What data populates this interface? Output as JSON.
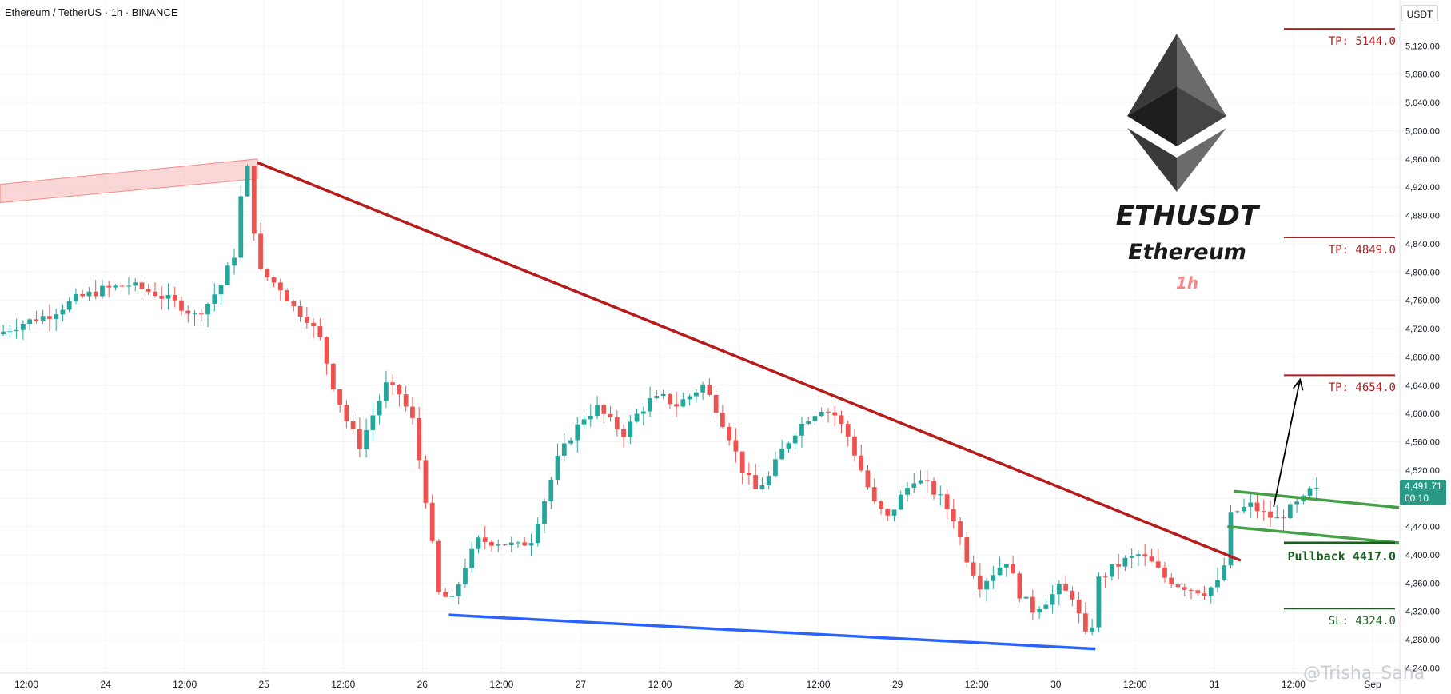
{
  "header": {
    "title": "Ethereum / TetherUS · 1h · BINANCE"
  },
  "currency": "USDT",
  "price_tag": {
    "price": "4,491.71",
    "countdown": "00:10"
  },
  "logo": {
    "symbol": "ETHUSDT",
    "name": "Ethereum",
    "timeframe": "1h",
    "icon": "ethereum-diamond-icon"
  },
  "levels": [
    {
      "label": "TP: 5144.0",
      "price": 5144.0,
      "color": "#b71c1c"
    },
    {
      "label": "TP: 4849.0",
      "price": 4849.0,
      "color": "#b71c1c"
    },
    {
      "label": "TP: 4654.0",
      "price": 4654.0,
      "color": "#b71c1c"
    },
    {
      "label": "Pullback 4417.0",
      "price": 4417.0,
      "color": "#1b5e20"
    },
    {
      "label": "SL: 4324.0",
      "price": 4324.0,
      "color": "#1b5e20"
    }
  ],
  "watermark": "@Trisha_Saha",
  "colors": {
    "up": "#26a69a",
    "down": "#ef5350",
    "resistance_line": "#b71c1c",
    "support_line": "#2962ff",
    "channel": "#43a047",
    "zone": "#f8b4b4"
  },
  "chart_data": {
    "type": "candlestick",
    "y_tick_labels": [
      "4,240.00",
      "4,280.00",
      "4,320.00",
      "4,360.00",
      "4,400.00",
      "4,440.00",
      "4,480.00",
      "4,520.00",
      "4,560.00",
      "4,600.00",
      "4,640.00",
      "4,680.00",
      "4,720.00",
      "4,760.00",
      "4,800.00",
      "4,840.00",
      "4,880.00",
      "4,920.00",
      "4,960.00",
      "5,000.00",
      "5,040.00",
      "5,080.00",
      "5,120.00"
    ],
    "ylim": [
      4236,
      5160
    ],
    "x_tick_labels": [
      "12:00",
      "24",
      "12:00",
      "25",
      "12:00",
      "26",
      "12:00",
      "27",
      "12:00",
      "28",
      "12:00",
      "29",
      "12:00",
      "30",
      "12:00",
      "31",
      "12:00",
      "Sep"
    ],
    "x_ticks_hours": [
      -12,
      0,
      12,
      24,
      36,
      48,
      60,
      72,
      84,
      96,
      108,
      120,
      132,
      144,
      156,
      168,
      180,
      192
    ],
    "xlim_hours": [
      -16,
      196
    ],
    "anchors_hours_price": [
      [
        -16,
        4712
      ],
      [
        -12,
        4728
      ],
      [
        -8,
        4740
      ],
      [
        -4,
        4762
      ],
      [
        0,
        4775
      ],
      [
        4,
        4782
      ],
      [
        8,
        4770
      ],
      [
        12,
        4752
      ],
      [
        14,
        4738
      ],
      [
        16,
        4756
      ],
      [
        18,
        4782
      ],
      [
        20,
        4825
      ],
      [
        21,
        4905
      ],
      [
        22,
        4945
      ],
      [
        23,
        4860
      ],
      [
        24,
        4800
      ],
      [
        27,
        4778
      ],
      [
        29,
        4750
      ],
      [
        31,
        4735
      ],
      [
        33,
        4705
      ],
      [
        35,
        4640
      ],
      [
        37,
        4590
      ],
      [
        39,
        4555
      ],
      [
        41,
        4598
      ],
      [
        43,
        4640
      ],
      [
        45,
        4628
      ],
      [
        47,
        4590
      ],
      [
        49,
        4480
      ],
      [
        51,
        4345
      ],
      [
        53,
        4335
      ],
      [
        55,
        4385
      ],
      [
        57,
        4420
      ],
      [
        60,
        4418
      ],
      [
        63,
        4412
      ],
      [
        65,
        4422
      ],
      [
        67,
        4478
      ],
      [
        69,
        4535
      ],
      [
        71,
        4568
      ],
      [
        73,
        4595
      ],
      [
        75,
        4608
      ],
      [
        77,
        4588
      ],
      [
        79,
        4572
      ],
      [
        81,
        4598
      ],
      [
        83,
        4618
      ],
      [
        85,
        4622
      ],
      [
        87,
        4612
      ],
      [
        89,
        4625
      ],
      [
        91,
        4640
      ],
      [
        93,
        4608
      ],
      [
        95,
        4568
      ],
      [
        97,
        4520
      ],
      [
        99,
        4492
      ],
      [
        101,
        4510
      ],
      [
        103,
        4548
      ],
      [
        105,
        4575
      ],
      [
        107,
        4595
      ],
      [
        109,
        4608
      ],
      [
        111,
        4598
      ],
      [
        113,
        4568
      ],
      [
        115,
        4520
      ],
      [
        117,
        4472
      ],
      [
        119,
        4452
      ],
      [
        121,
        4482
      ],
      [
        123,
        4508
      ],
      [
        125,
        4498
      ],
      [
        127,
        4480
      ],
      [
        129,
        4452
      ],
      [
        131,
        4395
      ],
      [
        133,
        4358
      ],
      [
        135,
        4375
      ],
      [
        137,
        4392
      ],
      [
        139,
        4345
      ],
      [
        141,
        4322
      ],
      [
        143,
        4335
      ],
      [
        145,
        4352
      ],
      [
        147,
        4342
      ],
      [
        149,
        4285
      ],
      [
        150,
        4302
      ],
      [
        151,
        4365
      ],
      [
        153,
        4380
      ],
      [
        155,
        4392
      ],
      [
        157,
        4400
      ],
      [
        159,
        4388
      ],
      [
        161,
        4368
      ],
      [
        163,
        4358
      ],
      [
        165,
        4352
      ],
      [
        167,
        4348
      ],
      [
        169,
        4360
      ],
      [
        170,
        4385
      ],
      [
        171,
        4455
      ],
      [
        172,
        4462
      ],
      [
        174,
        4470
      ],
      [
        176,
        4458
      ],
      [
        178,
        4450
      ],
      [
        180,
        4465
      ],
      [
        182,
        4478
      ],
      [
        183,
        4490
      ]
    ],
    "resistance_trendline": {
      "from": [
        23,
        4955
      ],
      "to": [
        172,
        4392
      ]
    },
    "support_trendline": {
      "from": [
        52,
        4315
      ],
      "to": [
        150,
        4267
      ]
    },
    "supply_zone": {
      "x": [
        -16,
        23
      ],
      "top": [
        4924,
        4960
      ],
      "bottom": [
        4898,
        4932
      ]
    },
    "channel_upper": {
      "from": [
        171,
        4490
      ],
      "to": [
        196,
        4467
      ]
    },
    "channel_lower": {
      "from": [
        170,
        4440
      ],
      "to": [
        196,
        4417
      ]
    },
    "target_arrow": {
      "from": [
        177,
        4468
      ],
      "to": [
        181,
        4648
      ]
    }
  }
}
